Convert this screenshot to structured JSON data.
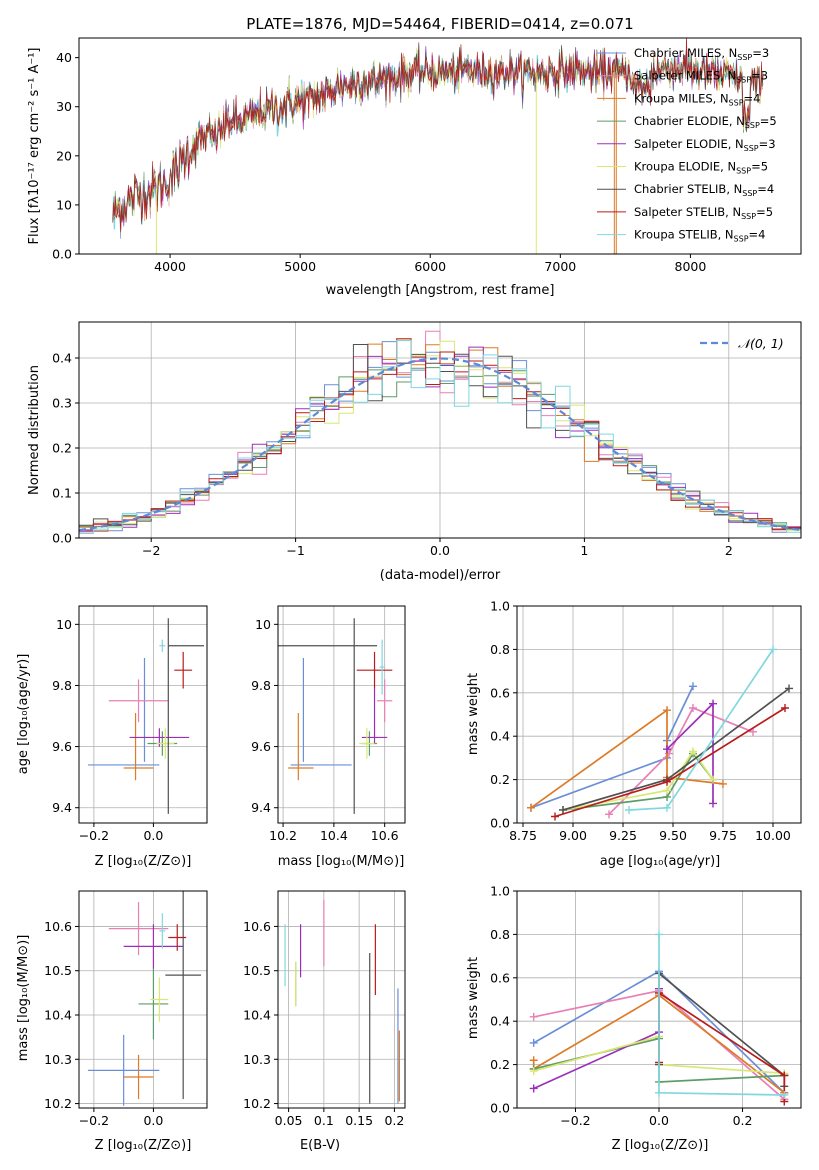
{
  "figure": {
    "title": "PLATE=1876, MJD=54464, FIBERID=0414, z=0.071"
  },
  "colors": {
    "Chabrier MILES": "#6a8fd8",
    "Salpeter MILES": "#e87fb5",
    "Kroupa MILES": "#dd7b27",
    "Chabrier ELODIE": "#5f9b68",
    "Salpeter ELODIE": "#9b30b8",
    "Kroupa ELODIE": "#d8e873",
    "Chabrier STELIB": "#505050",
    "Salpeter STELIB": "#b81c1c",
    "Kroupa STELIB": "#7fd8df",
    "normal_curve": "#5a8ad8"
  },
  "chart_data": [
    {
      "id": "spectrum",
      "type": "line",
      "xlabel": "wavelength [Angstrom, rest frame]",
      "ylabel": "Flux [fλ10⁻¹⁷ erg cm⁻² s⁻¹ A⁻¹]",
      "xlim": [
        3300,
        8850
      ],
      "ylim": [
        0,
        44
      ],
      "xticks": [
        4000,
        5000,
        6000,
        7000,
        8000
      ],
      "yticks": [
        0,
        10,
        20,
        30,
        40
      ],
      "legend_position": "top-right",
      "grid": false,
      "series": [
        {
          "name": "Chabrier MILES, N_SSP=3",
          "label": "Chabrier MILES, N",
          "sub": "SSP",
          "suffix": "=3"
        },
        {
          "name": "Salpeter MILES, N_SSP=3",
          "label": "Salpeter MILES, N",
          "sub": "SSP",
          "suffix": "=3"
        },
        {
          "name": "Kroupa MILES, N_SSP=4",
          "label": "Kroupa MILES, N",
          "sub": "SSP",
          "suffix": "=4"
        },
        {
          "name": "Chabrier ELODIE, N_SSP=5",
          "label": "Chabrier ELODIE, N",
          "sub": "SSP",
          "suffix": "=5"
        },
        {
          "name": "Salpeter ELODIE, N_SSP=3",
          "label": "Salpeter ELODIE, N",
          "sub": "SSP",
          "suffix": "=3"
        },
        {
          "name": "Kroupa ELODIE, N_SSP=5",
          "label": "Kroupa ELODIE, N",
          "sub": "SSP",
          "suffix": "=5"
        },
        {
          "name": "Chabrier STELIB, N_SSP=4",
          "label": "Chabrier STELIB, N",
          "sub": "SSP",
          "suffix": "=4"
        },
        {
          "name": "Salpeter STELIB, N_SSP=5",
          "label": "Salpeter STELIB, N",
          "sub": "SSP",
          "suffix": "=5"
        },
        {
          "name": "Kroupa STELIB, N_SSP=4",
          "label": "Kroupa STELIB, N",
          "sub": "SSP",
          "suffix": "=4"
        }
      ],
      "continuum": {
        "x": [
          3560,
          3650,
          3750,
          3850,
          3950,
          4050,
          4150,
          4250,
          4350,
          4450,
          4550,
          4700,
          4850,
          5000,
          5150,
          5300,
          5500,
          5700,
          5900,
          6100,
          6300,
          6500,
          6700,
          6900,
          7100,
          7300,
          7500,
          7700,
          7900,
          8100,
          8300,
          8450,
          8560
        ],
        "y": [
          8,
          10,
          12,
          13,
          14,
          17,
          21,
          24,
          24,
          27,
          27,
          29,
          30,
          31,
          32,
          34,
          35,
          36,
          37,
          37,
          37.5,
          37,
          37,
          37,
          37.5,
          37,
          37,
          37,
          38,
          37,
          36,
          35,
          34
        ]
      },
      "drops": [
        {
          "series": "Kroupa ELODIE, N_SSP=5",
          "x": [
            3895,
            6815
          ]
        },
        {
          "series": "Kroupa MILES, N_SSP=4",
          "x": [
            7430
          ]
        },
        {
          "series": "Kroupa MILES, N_SSP=4",
          "x": [
            7415
          ]
        }
      ]
    },
    {
      "id": "residual_hist",
      "type": "histogram",
      "xlabel": "(data-model)/error",
      "ylabel": "Normed distribution",
      "xlim": [
        -2.5,
        2.5
      ],
      "ylim": [
        0,
        0.48
      ],
      "xticks": [
        -2,
        -1,
        0,
        1,
        2
      ],
      "yticks": [
        0.0,
        0.1,
        0.2,
        0.3,
        0.4
      ],
      "grid": true,
      "legend_position": "top-right",
      "reference_curve": {
        "name": "𝒩(0, 1)",
        "mean": 0,
        "sigma": 1,
        "style": "dashed"
      },
      "bin_width": 0.1,
      "n_bins": 50
    },
    {
      "id": "age_vs_Z",
      "type": "errorbar",
      "xlabel": "Z [log₁₀(Z/Z⊙)]",
      "ylabel": "age  [log₁₀(age/yr)]",
      "xlim": [
        -0.25,
        0.18
      ],
      "ylim": [
        9.35,
        10.06
      ],
      "xticks": [
        -0.2,
        0.0
      ],
      "yticks": [
        9.4,
        9.6,
        9.8,
        10.0
      ],
      "grid": true,
      "points": [
        {
          "series": "Chabrier MILES",
          "x": -0.1,
          "xerr": 0.12,
          "y": 9.54,
          "yerr": 0.09,
          "xc": -0.03,
          "yc": 9.72,
          "yerr2": 0.17
        },
        {
          "series": "Salpeter MILES",
          "x": -0.05,
          "xerr": 0.1,
          "y": 9.75,
          "yerr": 0.07
        },
        {
          "series": "Kroupa MILES",
          "x": -0.05,
          "xerr": 0.05,
          "y": 9.53,
          "yerr": 0.08,
          "xc": -0.06,
          "yc": 9.6,
          "yerr2": 0.11
        },
        {
          "series": "Chabrier ELODIE",
          "x": 0.03,
          "xerr": 0.05,
          "y": 9.61,
          "yerr": 0.04
        },
        {
          "series": "Salpeter ELODIE",
          "x": 0.02,
          "xerr": 0.1,
          "y": 9.63,
          "yerr": 0.03
        },
        {
          "series": "Kroupa ELODIE",
          "x": 0.04,
          "xerr": 0.03,
          "y": 9.61,
          "yerr": 0.05
        },
        {
          "series": "Chabrier STELIB",
          "x": 0.11,
          "xerr": 0.06,
          "y": 9.93,
          "yerr": 0.1,
          "xc": 0.05,
          "yc": 9.7,
          "yerr2": 0.32
        },
        {
          "series": "Salpeter STELIB",
          "x": 0.1,
          "xerr": 0.03,
          "y": 9.85,
          "yerr": 0.06
        },
        {
          "series": "Kroupa STELIB",
          "x": 0.03,
          "xerr": 0.01,
          "y": 9.93,
          "yerr": 0.02
        }
      ]
    },
    {
      "id": "age_vs_mass",
      "type": "errorbar",
      "xlabel": "mass [log₁₀(M/M⊙)]",
      "ylabel": "",
      "xlim": [
        10.18,
        10.68
      ],
      "ylim": [
        9.35,
        10.06
      ],
      "xticks": [
        10.2,
        10.4,
        10.6
      ],
      "yticks": [
        9.4,
        9.6,
        9.8,
        10.0
      ],
      "grid": true
    },
    {
      "id": "massweight_vs_age",
      "type": "line",
      "xlabel": "age  [log₁₀(age/yr)]",
      "ylabel": "mass weight",
      "xlim": [
        8.72,
        10.14
      ],
      "ylim": [
        0,
        1.0
      ],
      "xticks": [
        8.75,
        9.0,
        9.25,
        9.5,
        9.75,
        10.0
      ],
      "xticklabels": [
        "8.75",
        "9.00",
        "9.25",
        "9.50",
        "9.75",
        "10.00"
      ],
      "yticks": [
        0.0,
        0.2,
        0.4,
        0.6,
        0.8,
        1.0
      ],
      "grid": true,
      "series": [
        {
          "name": "Chabrier MILES",
          "x": [
            8.79,
            9.47,
            9.47,
            9.6
          ],
          "y": [
            0.07,
            0.3,
            0.38,
            0.63
          ]
        },
        {
          "name": "Salpeter MILES",
          "x": [
            9.18,
            9.48,
            9.6,
            9.9
          ],
          "y": [
            0.04,
            0.32,
            0.53,
            0.42
          ]
        },
        {
          "name": "Kroupa MILES",
          "x": [
            8.79,
            9.47,
            9.47,
            9.75
          ],
          "y": [
            0.07,
            0.52,
            0.21,
            0.18
          ]
        },
        {
          "name": "Chabrier ELODIE",
          "x": [
            8.95,
            9.47,
            9.6,
            9.7
          ],
          "y": [
            0.06,
            0.12,
            0.32,
            0.2
          ]
        },
        {
          "name": "Salpeter ELODIE",
          "x": [
            9.47,
            9.7,
            9.7
          ],
          "y": [
            0.34,
            0.55,
            0.09
          ]
        },
        {
          "name": "Kroupa ELODIE",
          "x": [
            8.95,
            9.47,
            9.6,
            9.7
          ],
          "y": [
            0.06,
            0.15,
            0.33,
            0.2
          ]
        },
        {
          "name": "Chabrier STELIB",
          "x": [
            8.95,
            9.47,
            10.08
          ],
          "y": [
            0.06,
            0.2,
            0.62
          ]
        },
        {
          "name": "Salpeter STELIB",
          "x": [
            8.91,
            9.47,
            10.06
          ],
          "y": [
            0.03,
            0.19,
            0.53
          ]
        },
        {
          "name": "Kroupa STELIB",
          "x": [
            9.28,
            9.47,
            10.0
          ],
          "y": [
            0.06,
            0.07,
            0.8
          ]
        }
      ]
    },
    {
      "id": "mass_vs_Z",
      "type": "errorbar",
      "xlabel": "Z [log₁₀(Z/Z⊙)]",
      "ylabel": "mass [log₁₀(M/M⊙)]",
      "xlim": [
        -0.25,
        0.18
      ],
      "ylim": [
        10.19,
        10.68
      ],
      "xticks": [
        -0.2,
        0.0
      ],
      "yticks": [
        10.2,
        10.3,
        10.4,
        10.5,
        10.6
      ],
      "grid": true,
      "points": [
        {
          "series": "Chabrier MILES",
          "x": -0.1,
          "xerr": 0.12,
          "y": 10.275,
          "yerr": 0.08
        },
        {
          "series": "Salpeter MILES",
          "x": -0.05,
          "xerr": 0.1,
          "y": 10.595,
          "yerr": 0.06
        },
        {
          "series": "Kroupa MILES",
          "x": -0.05,
          "xerr": 0.05,
          "y": 10.26,
          "yerr": 0.05
        },
        {
          "series": "Chabrier ELODIE",
          "x": 0.0,
          "xerr": 0.05,
          "y": 10.425,
          "yerr": 0.08
        },
        {
          "series": "Salpeter ELODIE",
          "x": 0.0,
          "xerr": 0.1,
          "y": 10.555,
          "yerr": 0.05
        },
        {
          "series": "Kroupa ELODIE",
          "x": 0.02,
          "xerr": 0.03,
          "y": 10.435,
          "yerr": 0.05
        },
        {
          "series": "Chabrier STELIB",
          "x": 0.1,
          "xerr": 0.06,
          "y": 10.49,
          "yerr": 0.28
        },
        {
          "series": "Salpeter STELIB",
          "x": 0.08,
          "xerr": 0.03,
          "y": 10.575,
          "yerr": 0.03
        },
        {
          "series": "Kroupa STELIB",
          "x": 0.03,
          "xerr": 0.01,
          "y": 10.59,
          "yerr": 0.04
        }
      ]
    },
    {
      "id": "mass_vs_ebv",
      "type": "errorbar",
      "xlabel": "E(B-V)",
      "ylabel": "",
      "xlim": [
        0.035,
        0.215
      ],
      "ylim": [
        10.19,
        10.68
      ],
      "xticks": [
        0.05,
        0.1,
        0.15,
        0.2
      ],
      "yticks": [
        10.2,
        10.3,
        10.4,
        10.5,
        10.6
      ],
      "grid": true,
      "points": [
        {
          "series": "Kroupa STELIB",
          "x": 0.045,
          "y": 10.535,
          "yerr": 0.07
        },
        {
          "series": "Chabrier ELODIE",
          "x": 0.06,
          "y": 10.47,
          "yerr": 0.05
        },
        {
          "series": "Kroupa ELODIE",
          "x": 0.06,
          "y": 10.47,
          "yerr": 0.05
        },
        {
          "series": "Salpeter ELODIE",
          "x": 0.067,
          "y": 10.545,
          "yerr": 0.06
        },
        {
          "series": "Salpeter MILES",
          "x": 0.1,
          "y": 10.585,
          "yerr": 0.075
        },
        {
          "series": "Chabrier STELIB",
          "x": 0.165,
          "y": 10.37,
          "yerr": 0.17
        },
        {
          "series": "Salpeter STELIB",
          "x": 0.173,
          "y": 10.525,
          "yerr": 0.08
        },
        {
          "series": "Chabrier MILES",
          "x": 0.205,
          "y": 10.33,
          "yerr": 0.13
        },
        {
          "series": "Kroupa MILES",
          "x": 0.207,
          "y": 10.285,
          "yerr": 0.08
        }
      ]
    },
    {
      "id": "massweight_vs_Z",
      "type": "line",
      "xlabel": "Z [log₁₀(Z/Z⊙)]",
      "ylabel": "mass weight",
      "xlim": [
        -0.34,
        0.34
      ],
      "ylim": [
        0,
        1.0
      ],
      "xticks": [
        -0.2,
        0.0,
        0.2
      ],
      "yticks": [
        0.0,
        0.2,
        0.4,
        0.6,
        0.8,
        1.0
      ],
      "grid": true,
      "series": [
        {
          "name": "Chabrier MILES",
          "x": [
            -0.3,
            0.0,
            0.3
          ],
          "y": [
            0.3,
            0.63,
            0.07
          ]
        },
        {
          "name": "Salpeter MILES",
          "x": [
            -0.3,
            0.0,
            0.3
          ],
          "y": [
            0.42,
            0.54,
            0.04
          ]
        },
        {
          "name": "Kroupa MILES",
          "x": [
            -0.3,
            -0.3,
            0.0,
            0.3
          ],
          "y": [
            0.22,
            0.18,
            0.52,
            0.07
          ]
        },
        {
          "name": "Chabrier ELODIE",
          "x": [
            -0.3,
            0.0,
            0.0,
            0.3
          ],
          "y": [
            0.18,
            0.32,
            0.12,
            0.15
          ]
        },
        {
          "name": "Salpeter ELODIE",
          "x": [
            -0.3,
            0.0,
            0.0
          ],
          "y": [
            0.09,
            0.35,
            0.55
          ]
        },
        {
          "name": "Kroupa ELODIE",
          "x": [
            -0.3,
            0.0,
            0.0,
            0.3
          ],
          "y": [
            0.17,
            0.33,
            0.2,
            0.16
          ]
        },
        {
          "name": "Chabrier STELIB",
          "x": [
            0.0,
            0.0,
            0.3,
            0.3
          ],
          "y": [
            0.2,
            0.62,
            0.15,
            0.1
          ]
        },
        {
          "name": "Salpeter STELIB",
          "x": [
            0.0,
            0.0,
            0.3,
            0.3
          ],
          "y": [
            0.21,
            0.53,
            0.15,
            0.03
          ]
        },
        {
          "name": "Kroupa STELIB",
          "x": [
            0.0,
            0.0,
            0.3
          ],
          "y": [
            0.8,
            0.07,
            0.06
          ]
        }
      ]
    }
  ]
}
